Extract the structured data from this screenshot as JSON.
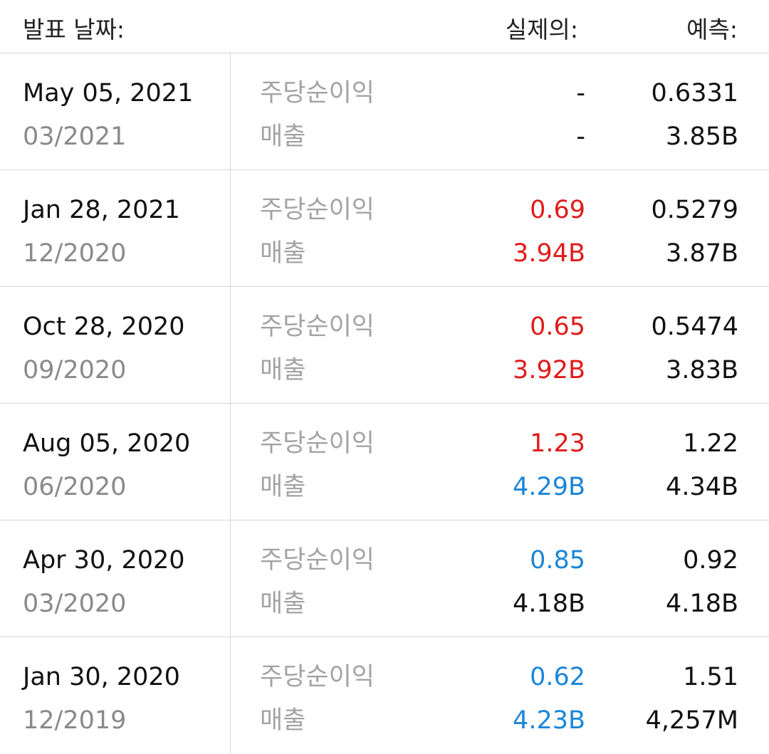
{
  "header": {
    "date_label": "발표 날짜:",
    "actual_label": "실제의:",
    "forecast_label": "예측:"
  },
  "labels": {
    "eps": "주당순이익",
    "revenue": "매출"
  },
  "colors": {
    "beat": "#e01b1b",
    "miss": "#1a86d8",
    "neutral": "#111111"
  },
  "rows": [
    {
      "date": "May 05, 2021",
      "period": "03/2021",
      "eps_actual": "-",
      "eps_actual_status": "neutral",
      "eps_forecast": "0.6331",
      "rev_actual": "-",
      "rev_actual_status": "neutral",
      "rev_forecast": "3.85B"
    },
    {
      "date": "Jan 28, 2021",
      "period": "12/2020",
      "eps_actual": "0.69",
      "eps_actual_status": "beat",
      "eps_forecast": "0.5279",
      "rev_actual": "3.94B",
      "rev_actual_status": "beat",
      "rev_forecast": "3.87B"
    },
    {
      "date": "Oct 28, 2020",
      "period": "09/2020",
      "eps_actual": "0.65",
      "eps_actual_status": "beat",
      "eps_forecast": "0.5474",
      "rev_actual": "3.92B",
      "rev_actual_status": "beat",
      "rev_forecast": "3.83B"
    },
    {
      "date": "Aug 05, 2020",
      "period": "06/2020",
      "eps_actual": "1.23",
      "eps_actual_status": "beat",
      "eps_forecast": "1.22",
      "rev_actual": "4.29B",
      "rev_actual_status": "miss",
      "rev_forecast": "4.34B"
    },
    {
      "date": "Apr 30, 2020",
      "period": "03/2020",
      "eps_actual": "0.85",
      "eps_actual_status": "miss",
      "eps_forecast": "0.92",
      "rev_actual": "4.18B",
      "rev_actual_status": "neutral",
      "rev_forecast": "4.18B"
    },
    {
      "date": "Jan 30, 2020",
      "period": "12/2019",
      "eps_actual": "0.62",
      "eps_actual_status": "miss",
      "eps_forecast": "1.51",
      "rev_actual": "4.23B",
      "rev_actual_status": "miss",
      "rev_forecast": "4,257M"
    }
  ]
}
